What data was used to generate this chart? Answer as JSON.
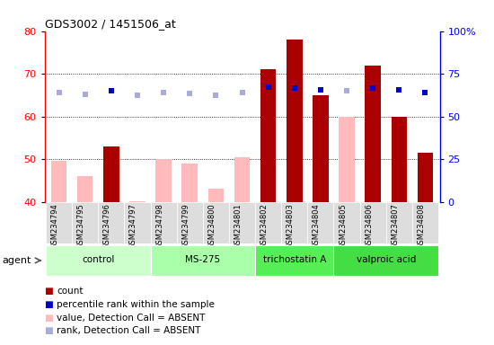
{
  "title": "GDS3002 / 1451506_at",
  "samples": [
    "GSM234794",
    "GSM234795",
    "GSM234796",
    "GSM234797",
    "GSM234798",
    "GSM234799",
    "GSM234800",
    "GSM234801",
    "GSM234802",
    "GSM234803",
    "GSM234804",
    "GSM234805",
    "GSM234806",
    "GSM234807",
    "GSM234808"
  ],
  "bar_values": [
    null,
    null,
    53.0,
    null,
    null,
    null,
    null,
    null,
    71.0,
    78.0,
    65.0,
    null,
    72.0,
    60.0,
    51.5
  ],
  "absent_values": [
    49.5,
    46.0,
    null,
    40.2,
    50.0,
    49.0,
    43.0,
    50.5,
    null,
    null,
    null,
    60.0,
    null,
    null,
    null
  ],
  "rank_values": [
    64.0,
    63.0,
    65.0,
    62.5,
    64.0,
    63.5,
    62.5,
    64.0,
    67.0,
    66.5,
    65.5,
    65.0,
    66.5,
    65.5,
    64.0
  ],
  "rank_absent": [
    true,
    true,
    false,
    true,
    true,
    true,
    true,
    true,
    false,
    false,
    false,
    true,
    false,
    false,
    false
  ],
  "groups": [
    {
      "label": "control",
      "start": 0,
      "end": 3,
      "color": "#ccffcc"
    },
    {
      "label": "MS-275",
      "start": 4,
      "end": 7,
      "color": "#aaffaa"
    },
    {
      "label": "trichostatin A",
      "start": 8,
      "end": 10,
      "color": "#55ee55"
    },
    {
      "label": "valproic acid",
      "start": 11,
      "end": 14,
      "color": "#44dd44"
    }
  ],
  "ylim_left": [
    40,
    80
  ],
  "ylim_right": [
    0,
    100
  ],
  "yticks_left": [
    40,
    50,
    60,
    70,
    80
  ],
  "yticks_right": [
    0,
    25,
    50,
    75,
    100
  ],
  "ytick_labels_right": [
    "0",
    "25",
    "50",
    "75",
    "100%"
  ],
  "color_solid_bar": "#aa0000",
  "color_absent_bar": "#ffbbbb",
  "color_rank_present": "#0000cc",
  "color_rank_absent": "#aaaadd",
  "plot_bg": "#ffffff",
  "xtick_bg": "#dddddd",
  "agent_label": "agent"
}
